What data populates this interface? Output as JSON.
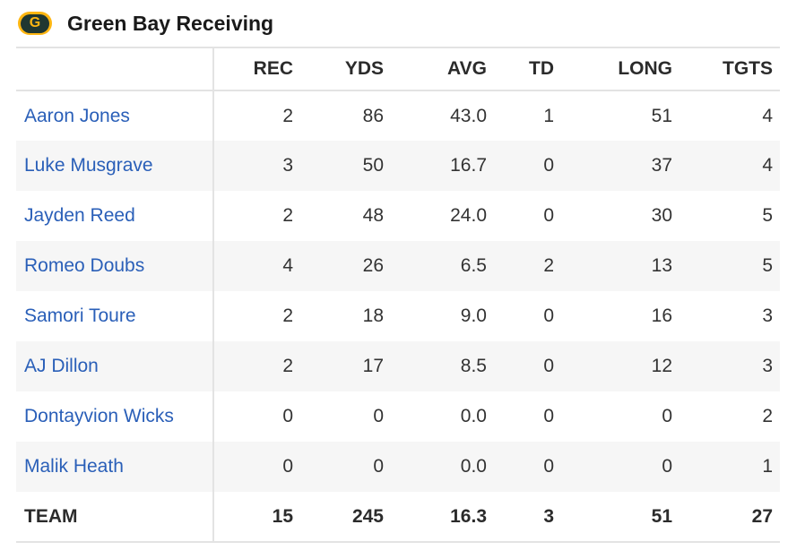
{
  "header": {
    "logo_letter": "G",
    "title": "Green Bay Receiving"
  },
  "colors": {
    "logo_gold": "#ffb612",
    "logo_green": "#203731",
    "link_blue": "#2a5fb8"
  },
  "columns": [
    "REC",
    "YDS",
    "AVG",
    "TD",
    "LONG",
    "TGTS"
  ],
  "players": [
    {
      "name": "Aaron Jones",
      "rec": "2",
      "yds": "86",
      "avg": "43.0",
      "td": "1",
      "long": "51",
      "tgts": "4"
    },
    {
      "name": "Luke Musgrave",
      "rec": "3",
      "yds": "50",
      "avg": "16.7",
      "td": "0",
      "long": "37",
      "tgts": "4"
    },
    {
      "name": "Jayden Reed",
      "rec": "2",
      "yds": "48",
      "avg": "24.0",
      "td": "0",
      "long": "30",
      "tgts": "5"
    },
    {
      "name": "Romeo Doubs",
      "rec": "4",
      "yds": "26",
      "avg": "6.5",
      "td": "2",
      "long": "13",
      "tgts": "5"
    },
    {
      "name": "Samori Toure",
      "rec": "2",
      "yds": "18",
      "avg": "9.0",
      "td": "0",
      "long": "16",
      "tgts": "3"
    },
    {
      "name": "AJ Dillon",
      "rec": "2",
      "yds": "17",
      "avg": "8.5",
      "td": "0",
      "long": "12",
      "tgts": "3"
    },
    {
      "name": "Dontayvion Wicks",
      "rec": "0",
      "yds": "0",
      "avg": "0.0",
      "td": "0",
      "long": "0",
      "tgts": "2"
    },
    {
      "name": "Malik Heath",
      "rec": "0",
      "yds": "0",
      "avg": "0.0",
      "td": "0",
      "long": "0",
      "tgts": "1"
    }
  ],
  "team": {
    "name": "TEAM",
    "rec": "15",
    "yds": "245",
    "avg": "16.3",
    "td": "3",
    "long": "51",
    "tgts": "27"
  }
}
